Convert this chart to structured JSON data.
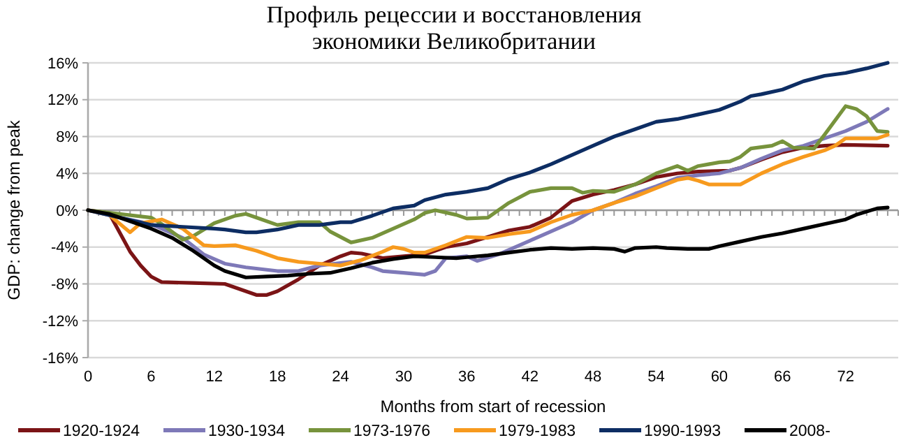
{
  "chart_data": {
    "type": "line",
    "title": "Профиль рецессии и восстановления\nэкономики Великобритании",
    "xlabel": "Months from start of recession",
    "ylabel": "GDP: change from peak",
    "xlim": [
      0,
      77
    ],
    "xticks": [
      0,
      6,
      12,
      18,
      24,
      30,
      36,
      42,
      48,
      54,
      60,
      66,
      72
    ],
    "ylim": [
      -16,
      16
    ],
    "yticks": [
      {
        "value": -16,
        "label": "-16%"
      },
      {
        "value": -12,
        "label": "-12%"
      },
      {
        "value": -8,
        "label": "-8%"
      },
      {
        "value": -4,
        "label": "-4%"
      },
      {
        "value": 0,
        "label": "0%"
      },
      {
        "value": 4,
        "label": "4%"
      },
      {
        "value": 8,
        "label": "8%"
      },
      {
        "value": 12,
        "label": "12%"
      },
      {
        "value": 16,
        "label": "16%"
      }
    ],
    "grid": "y",
    "legend": "bottom",
    "marker": "none",
    "line_style": "solid",
    "series": [
      {
        "name": "1920-1924",
        "color": "#7b1416",
        "x": [
          0,
          2,
          4,
          5,
          6,
          7,
          10,
          13,
          15,
          16,
          17,
          18,
          20,
          22,
          24,
          25,
          26,
          28,
          30,
          32,
          34,
          36,
          40,
          42,
          44,
          46,
          48,
          50,
          52,
          54,
          56,
          58,
          61,
          62,
          64,
          66,
          68,
          70,
          72,
          76
        ],
        "values": [
          0,
          -0.3,
          -4.5,
          -6,
          -7.2,
          -7.8,
          -7.9,
          -8,
          -8.8,
          -9.2,
          -9.2,
          -8.8,
          -7.5,
          -6,
          -5,
          -4.6,
          -4.7,
          -5.2,
          -5,
          -4.8,
          -4,
          -3.6,
          -2.2,
          -1.8,
          -0.8,
          1,
          1.7,
          2.2,
          2.8,
          3.6,
          4,
          4.2,
          4.3,
          4.6,
          5.5,
          6.3,
          6.8,
          7,
          7.1,
          7
        ]
      },
      {
        "name": "1930-1934",
        "color": "#7e79b8",
        "x": [
          0,
          3,
          6,
          9,
          11,
          13,
          15,
          18,
          20,
          22,
          25,
          27,
          28,
          30,
          32,
          33,
          34,
          36,
          37,
          39,
          42,
          44,
          46,
          48,
          50,
          52,
          54,
          56,
          58,
          60,
          62,
          64,
          66,
          68,
          70,
          72,
          74,
          76
        ],
        "values": [
          0,
          -0.8,
          -1.5,
          -3,
          -4.8,
          -5.8,
          -6.2,
          -6.6,
          -6.6,
          -6,
          -5.6,
          -6.2,
          -6.6,
          -6.8,
          -7,
          -6.6,
          -5.2,
          -5,
          -5.5,
          -4.8,
          -3.3,
          -2.3,
          -1.3,
          0,
          0.8,
          1.8,
          2.6,
          3.5,
          3.8,
          4,
          4.6,
          5.6,
          6.5,
          7,
          7.8,
          8.6,
          9.6,
          11
        ]
      },
      {
        "name": "1973-1976",
        "color": "#77933c",
        "x": [
          0,
          6,
          7,
          9,
          10,
          12,
          14,
          15,
          16,
          18,
          20,
          22,
          23,
          25,
          27,
          29,
          31,
          32,
          33,
          35,
          36,
          38,
          40,
          42,
          44,
          46,
          47,
          48,
          50,
          52,
          54,
          56,
          57,
          58,
          60,
          61,
          62,
          63,
          65,
          66,
          67,
          69,
          70,
          72,
          73,
          74,
          75,
          76
        ],
        "values": [
          0,
          -0.8,
          -1.5,
          -3.2,
          -2.8,
          -1.4,
          -0.6,
          -0.4,
          -0.8,
          -1.6,
          -1.3,
          -1.3,
          -2.3,
          -3.5,
          -3,
          -2,
          -1,
          -0.3,
          0,
          -0.5,
          -0.9,
          -0.8,
          0.8,
          2,
          2.4,
          2.4,
          1.9,
          2.1,
          2,
          2.8,
          4,
          4.8,
          4.3,
          4.8,
          5.2,
          5.3,
          5.8,
          6.7,
          7,
          7.5,
          6.8,
          6.7,
          8.2,
          11.3,
          11,
          10.2,
          8.6,
          8.5
        ]
      },
      {
        "name": "1979-1983",
        "color": "#f79a1e",
        "x": [
          0,
          2,
          4,
          5,
          7,
          9,
          11,
          12,
          14,
          16,
          18,
          20,
          22,
          24,
          26,
          28,
          29,
          30,
          31,
          32,
          34,
          36,
          38,
          40,
          42,
          44,
          46,
          48,
          50,
          52,
          54,
          56,
          57,
          58,
          59,
          60,
          62,
          64,
          66,
          68,
          70,
          71,
          72,
          74,
          75,
          76
        ],
        "values": [
          0,
          -0.5,
          -2.4,
          -1.4,
          -1,
          -2,
          -3.8,
          -3.9,
          -3.8,
          -4.4,
          -5.2,
          -5.6,
          -5.8,
          -6,
          -5.4,
          -4.5,
          -4,
          -4.2,
          -4.6,
          -4.6,
          -3.8,
          -2.9,
          -3,
          -2.6,
          -2.3,
          -1.3,
          -0.5,
          0,
          0.8,
          1.5,
          2.4,
          3.3,
          3.5,
          3.2,
          2.8,
          2.8,
          2.8,
          4,
          5,
          5.8,
          6.5,
          7,
          7.8,
          7.8,
          7.8,
          8.2
        ]
      },
      {
        "name": "1990-1993",
        "color": "#0d2d63",
        "x": [
          0,
          3,
          6,
          9,
          12,
          13,
          15,
          16,
          18,
          20,
          22,
          24,
          25,
          27,
          29,
          31,
          32,
          34,
          36,
          38,
          40,
          42,
          44,
          46,
          48,
          50,
          52,
          54,
          56,
          58,
          60,
          62,
          63,
          64,
          66,
          68,
          70,
          72,
          74,
          76
        ],
        "values": [
          0,
          -0.8,
          -1.6,
          -1.8,
          -2,
          -2.1,
          -2.4,
          -2.4,
          -2.1,
          -1.6,
          -1.6,
          -1.3,
          -1.3,
          -0.6,
          0.2,
          0.5,
          1.1,
          1.7,
          2,
          2.4,
          3.4,
          4.1,
          5,
          6,
          7,
          8,
          8.8,
          9.6,
          9.9,
          10.4,
          10.9,
          11.8,
          12.4,
          12.6,
          13.1,
          14,
          14.6,
          14.9,
          15.4,
          16
        ]
      },
      {
        "name": "2008-",
        "color": "#000000",
        "x": [
          0,
          2,
          4,
          6,
          8,
          10,
          12,
          13,
          15,
          17,
          19,
          21,
          23,
          25,
          27,
          29,
          31,
          33,
          35,
          36,
          38,
          40,
          42,
          44,
          46,
          48,
          50,
          51,
          52,
          54,
          55,
          57,
          59,
          60,
          62,
          64,
          66,
          68,
          70,
          72,
          73,
          75,
          76
        ],
        "values": [
          0,
          -0.4,
          -1.2,
          -2,
          -3,
          -4.4,
          -6,
          -6.6,
          -7.3,
          -7.2,
          -7.1,
          -6.9,
          -6.8,
          -6.3,
          -5.7,
          -5.3,
          -5,
          -5.1,
          -5.2,
          -5.1,
          -4.9,
          -4.6,
          -4.3,
          -4.1,
          -4.2,
          -4.1,
          -4.2,
          -4.5,
          -4.1,
          -4,
          -4.1,
          -4.2,
          -4.2,
          -3.9,
          -3.4,
          -2.9,
          -2.5,
          -2,
          -1.5,
          -1,
          -0.5,
          0.2,
          0.3
        ]
      }
    ]
  }
}
